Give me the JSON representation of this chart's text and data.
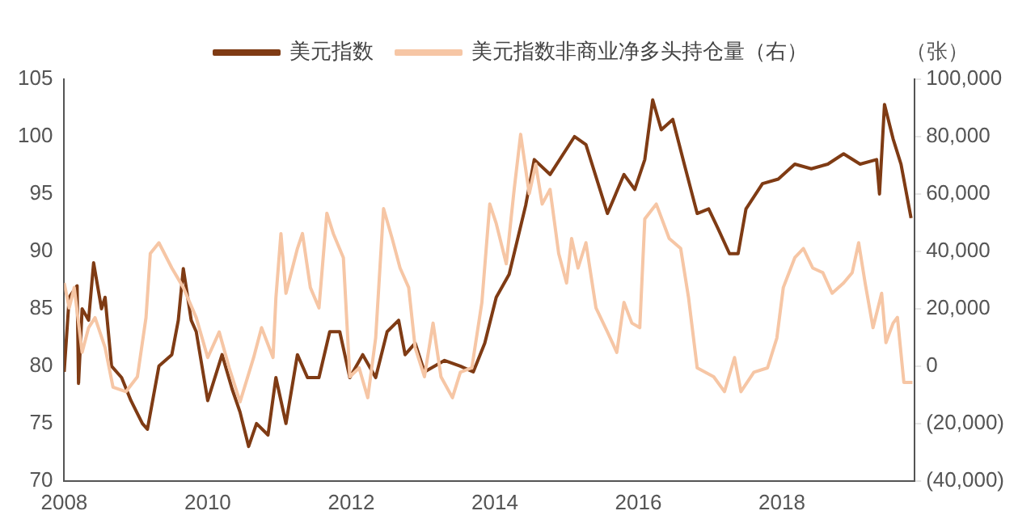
{
  "chart_data": {
    "type": "line",
    "y2label": "（张）",
    "legend": "top",
    "grid": false,
    "marker": "none",
    "line_style": "solid",
    "xlim": [
      2008,
      2019.85
    ],
    "xticks": [
      2008,
      2010,
      2012,
      2014,
      2016,
      2018
    ],
    "ylim": [
      70,
      105
    ],
    "yticks": [
      70,
      75,
      80,
      85,
      90,
      95,
      100,
      105
    ],
    "y2lim": [
      -40000,
      100000
    ],
    "y2ticks": [
      {
        "value": -40000,
        "label": "(40,000)"
      },
      {
        "value": -20000,
        "label": "(20,000)"
      },
      {
        "value": 0,
        "label": "0"
      },
      {
        "value": 20000,
        "label": "20,000"
      },
      {
        "value": 40000,
        "label": "40,000"
      },
      {
        "value": 60000,
        "label": "60,000"
      },
      {
        "value": 80000,
        "label": "80,000"
      },
      {
        "value": 100000,
        "label": "100,000"
      }
    ],
    "series": [
      {
        "name": "美元指数非商业净多头持仓量（右）",
        "color": "#f6c6a5",
        "axis": "y2",
        "x": [
          2008.0,
          2008.07,
          2008.14,
          2008.25,
          2008.34,
          2008.43,
          2008.57,
          2008.68,
          2008.86,
          2009.02,
          2009.14,
          2009.2,
          2009.32,
          2009.5,
          2009.66,
          2009.84,
          2010.0,
          2010.16,
          2010.3,
          2010.45,
          2010.64,
          2010.75,
          2010.91,
          2010.95,
          2011.02,
          2011.09,
          2011.25,
          2011.32,
          2011.43,
          2011.55,
          2011.66,
          2011.75,
          2011.89,
          2011.98,
          2012.11,
          2012.23,
          2012.34,
          2012.45,
          2012.57,
          2012.68,
          2012.8,
          2012.89,
          2013.02,
          2013.14,
          2013.25,
          2013.41,
          2013.52,
          2013.68,
          2013.82,
          2013.93,
          2014.02,
          2014.16,
          2014.27,
          2014.36,
          2014.48,
          2014.57,
          2014.66,
          2014.77,
          2014.89,
          2015.0,
          2015.07,
          2015.16,
          2015.27,
          2015.41,
          2015.57,
          2015.7,
          2015.8,
          2015.91,
          2016.02,
          2016.09,
          2016.25,
          2016.43,
          2016.59,
          2016.7,
          2016.82,
          2017.05,
          2017.2,
          2017.34,
          2017.43,
          2017.61,
          2017.8,
          2017.93,
          2018.02,
          2018.18,
          2018.3,
          2018.43,
          2018.57,
          2018.7,
          2018.86,
          2018.98,
          2019.07,
          2019.16,
          2019.27,
          2019.39,
          2019.45,
          2019.55,
          2019.61,
          2019.7,
          2019.82
        ],
        "values": [
          29000,
          20300,
          27400,
          4800,
          13400,
          16900,
          6500,
          -7300,
          -8900,
          -3700,
          16900,
          39300,
          43000,
          34200,
          27400,
          16900,
          3000,
          11900,
          -600,
          -12500,
          3000,
          13400,
          3000,
          23800,
          46200,
          25400,
          41000,
          46200,
          27400,
          20300,
          53300,
          46200,
          37800,
          -3700,
          -600,
          -11000,
          9800,
          54900,
          44500,
          34200,
          27400,
          6500,
          -3700,
          15000,
          -3700,
          -11000,
          -2100,
          -600,
          22200,
          56500,
          49700,
          35700,
          61600,
          80800,
          60100,
          70400,
          56500,
          61600,
          39300,
          29000,
          44500,
          34200,
          43000,
          20300,
          11900,
          4800,
          22200,
          15000,
          13400,
          51300,
          56500,
          44500,
          41000,
          23800,
          -600,
          -3700,
          -8900,
          3000,
          -8900,
          -2100,
          -600,
          9800,
          27400,
          37800,
          41000,
          34200,
          32600,
          25400,
          29000,
          32600,
          43000,
          29000,
          13400,
          25400,
          8200,
          15000,
          17000,
          -5700,
          -5700
        ]
      },
      {
        "name": "美元指数",
        "color": "#7f3b14",
        "x": [
          2008.0,
          2008.07,
          2008.18,
          2008.2,
          2008.25,
          2008.34,
          2008.41,
          2008.52,
          2008.57,
          2008.66,
          2008.8,
          2008.93,
          2009.09,
          2009.16,
          2009.32,
          2009.5,
          2009.59,
          2009.66,
          2009.77,
          2009.84,
          2010.0,
          2010.2,
          2010.34,
          2010.45,
          2010.57,
          2010.68,
          2010.84,
          2010.95,
          2011.09,
          2011.25,
          2011.39,
          2011.55,
          2011.7,
          2011.84,
          2011.98,
          2012.16,
          2012.34,
          2012.5,
          2012.66,
          2012.75,
          2012.89,
          2013.02,
          2013.3,
          2013.52,
          2013.7,
          2013.86,
          2014.02,
          2014.2,
          2014.43,
          2014.55,
          2014.77,
          2015.11,
          2015.27,
          2015.57,
          2015.8,
          2015.95,
          2016.09,
          2016.2,
          2016.32,
          2016.48,
          2016.64,
          2016.82,
          2016.98,
          2017.11,
          2017.27,
          2017.39,
          2017.5,
          2017.73,
          2017.95,
          2018.18,
          2018.41,
          2018.64,
          2018.86,
          2019.09,
          2019.32,
          2019.36,
          2019.43,
          2019.55,
          2019.66,
          2019.8
        ],
        "values": [
          79.5,
          86,
          87,
          78.5,
          85,
          84,
          89,
          85,
          86,
          80,
          79,
          77,
          75,
          74.5,
          80,
          81,
          84,
          88.5,
          84,
          83,
          77,
          81,
          78,
          76,
          73,
          75,
          74,
          79,
          75,
          81,
          79,
          79,
          83,
          83,
          79,
          81,
          79,
          83,
          84,
          81,
          82,
          79.5,
          80.5,
          80,
          79.5,
          82,
          86,
          88,
          94,
          98,
          96.7,
          100,
          99.3,
          93.3,
          96.7,
          95.4,
          98,
          103.2,
          100.6,
          101.5,
          97.6,
          93.3,
          93.7,
          92,
          89.8,
          89.8,
          93.7,
          95.9,
          96.3,
          97.6,
          97.2,
          97.6,
          98.5,
          97.6,
          98,
          95,
          102.8,
          99.8,
          97.6,
          92.9
        ]
      }
    ]
  }
}
